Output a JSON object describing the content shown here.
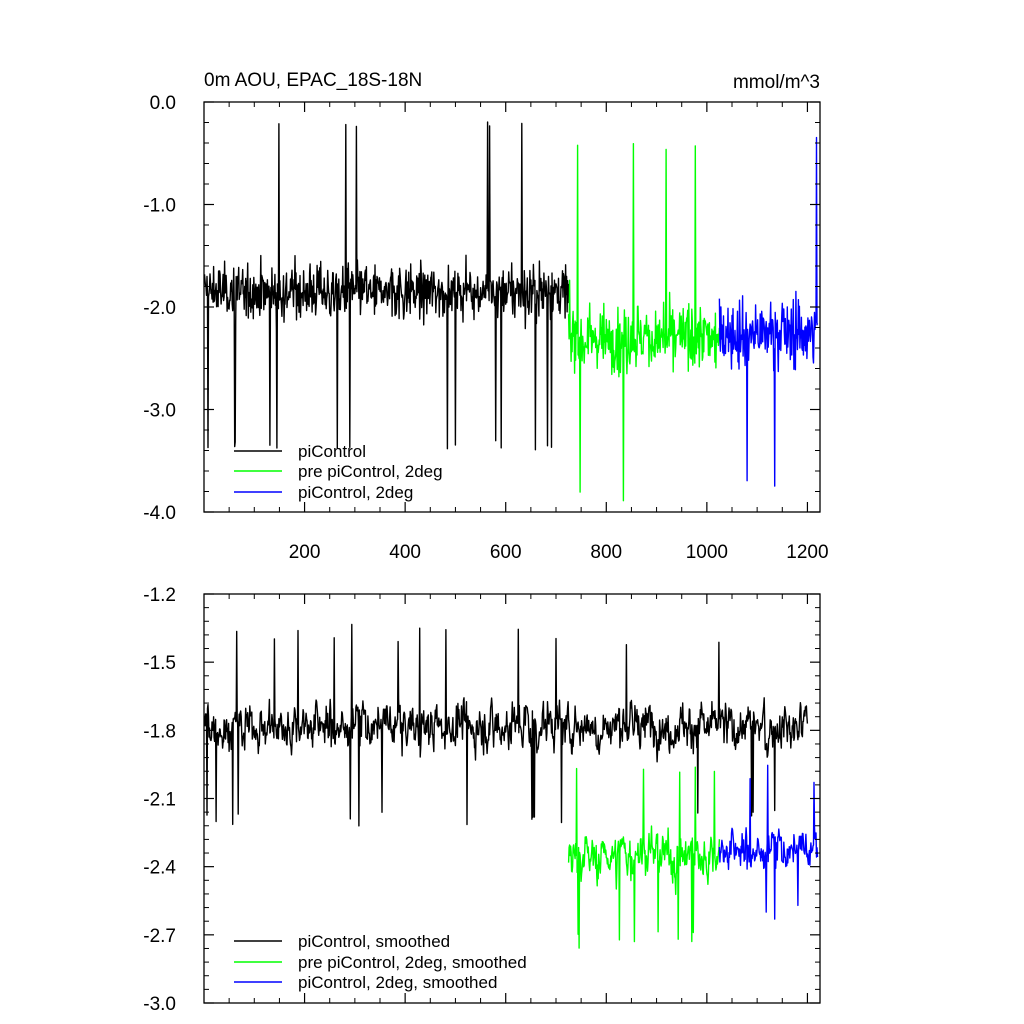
{
  "chart_data": [
    {
      "type": "line",
      "title": "0m AOU, EPAC_18S-18N",
      "units": "mmol/m^3",
      "xlim": [
        0,
        1225
      ],
      "ylim": [
        -4.0,
        0.0
      ],
      "y_ticks": [
        0.0,
        -1.0,
        -2.0,
        -3.0,
        -4.0
      ],
      "y_tick_labels": [
        "0.0",
        "-1.0",
        "-2.0",
        "-3.0",
        "-4.0"
      ],
      "x_ticks": [
        200,
        400,
        600,
        800,
        1000,
        1200
      ],
      "x_tick_labels": [
        "200",
        "400",
        "600",
        "800",
        "1000",
        "1200"
      ],
      "grid": false,
      "legend_position": "bottom-left",
      "series": [
        {
          "name": "piControl",
          "color": "#000000",
          "x_start": 1,
          "x_end": 725,
          "approx_mean": -1.85,
          "approx_min": -3.4,
          "approx_max": -0.15,
          "noise_amplitude": 0.4
        },
        {
          "name": "pre piControl, 2deg",
          "color": "#00ff00",
          "x_start": 725,
          "x_end": 1025,
          "approx_mean": -2.3,
          "approx_min": -3.9,
          "approx_max": -0.4,
          "noise_amplitude": 0.5
        },
        {
          "name": "piControl, 2deg",
          "color": "#0000ff",
          "x_start": 1025,
          "x_end": 1220,
          "approx_mean": -2.25,
          "approx_min": -3.75,
          "approx_max": -0.3,
          "noise_amplitude": 0.5
        }
      ]
    },
    {
      "type": "line",
      "ylim": [
        -3.0,
        -1.2
      ],
      "xlim": [
        0,
        1225
      ],
      "y_ticks": [
        -1.2,
        -1.5,
        -1.8,
        -2.1,
        -2.4,
        -2.7,
        -3.0
      ],
      "y_tick_labels": [
        "-1.2",
        "-1.5",
        "-1.8",
        "-2.1",
        "-2.4",
        "-2.7",
        "-3.0"
      ],
      "x_ticks": [
        200,
        400,
        600,
        800,
        1000,
        1200
      ],
      "grid": false,
      "legend_position": "bottom-left",
      "series": [
        {
          "name": "piControl, smoothed",
          "color": "#000000",
          "x_start": 1,
          "x_end": 1200,
          "approx_mean": -1.78,
          "approx_min": -2.25,
          "approx_max": -1.33,
          "noise_amplitude": 0.16
        },
        {
          "name": "pre piControl, 2deg, smoothed",
          "color": "#00ff00",
          "x_start": 725,
          "x_end": 1025,
          "approx_mean": -2.35,
          "approx_min": -2.77,
          "approx_max": -1.95,
          "noise_amplitude": 0.16
        },
        {
          "name": "piControl, 2deg, smoothed",
          "color": "#0000ff",
          "x_start": 1025,
          "x_end": 1220,
          "approx_mean": -2.33,
          "approx_min": -2.66,
          "approx_max": -1.95,
          "noise_amplitude": 0.14
        }
      ]
    }
  ]
}
